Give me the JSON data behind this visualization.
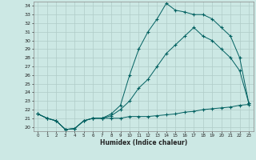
{
  "title": "",
  "xlabel": "Humidex (Indice chaleur)",
  "bg_color": "#cce8e4",
  "grid_color": "#b0ccc8",
  "line_color": "#006060",
  "x": [
    0,
    1,
    2,
    3,
    4,
    5,
    6,
    7,
    8,
    9,
    10,
    11,
    12,
    13,
    14,
    15,
    16,
    17,
    18,
    19,
    20,
    21,
    22,
    23
  ],
  "line_min": [
    21.5,
    21.0,
    20.7,
    19.7,
    19.8,
    20.7,
    21.0,
    21.0,
    21.0,
    21.0,
    21.2,
    21.2,
    21.2,
    21.3,
    21.4,
    21.5,
    21.7,
    21.8,
    22.0,
    22.1,
    22.2,
    22.3,
    22.5,
    22.6
  ],
  "line_mid": [
    21.5,
    21.0,
    20.7,
    19.7,
    19.8,
    20.7,
    21.0,
    21.0,
    21.3,
    22.0,
    23.0,
    24.5,
    25.5,
    27.0,
    28.5,
    29.5,
    30.5,
    31.5,
    30.5,
    30.0,
    29.0,
    28.0,
    26.5,
    22.7
  ],
  "line_max": [
    21.5,
    21.0,
    20.7,
    19.7,
    19.8,
    20.7,
    21.0,
    21.0,
    21.5,
    22.5,
    26.0,
    29.0,
    31.0,
    32.5,
    34.3,
    33.5,
    33.3,
    33.0,
    33.0,
    32.5,
    31.5,
    30.5,
    28.0,
    22.7
  ],
  "ylim": [
    19.5,
    34.5
  ],
  "yticks": [
    20,
    21,
    22,
    23,
    24,
    25,
    26,
    27,
    28,
    29,
    30,
    31,
    32,
    33,
    34
  ],
  "xlim": [
    -0.5,
    23.5
  ],
  "xticks": [
    0,
    1,
    2,
    3,
    4,
    5,
    6,
    7,
    8,
    9,
    10,
    11,
    12,
    13,
    14,
    15,
    16,
    17,
    18,
    19,
    20,
    21,
    22,
    23
  ]
}
